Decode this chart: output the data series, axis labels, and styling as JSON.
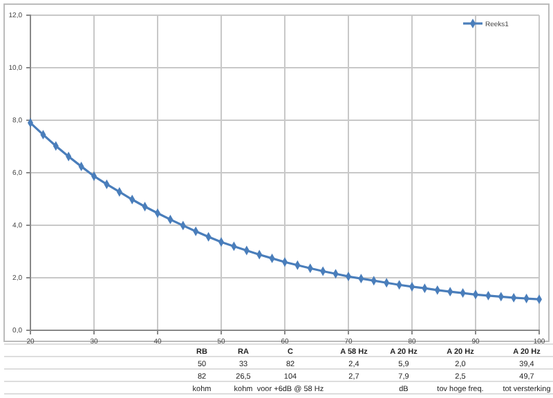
{
  "chart_data": {
    "type": "line",
    "x": [
      20,
      22,
      24,
      26,
      28,
      30,
      32,
      34,
      36,
      38,
      40,
      42,
      44,
      46,
      48,
      50,
      52,
      54,
      56,
      58,
      60,
      62,
      64,
      66,
      68,
      70,
      72,
      74,
      76,
      78,
      80,
      82,
      84,
      86,
      88,
      90,
      92,
      94,
      96,
      98,
      100
    ],
    "series": [
      {
        "name": "Reeks1",
        "color": "#4a7ebb",
        "values": [
          7.9,
          7.45,
          7.02,
          6.62,
          6.24,
          5.87,
          5.56,
          5.27,
          4.98,
          4.71,
          4.46,
          4.22,
          3.99,
          3.77,
          3.56,
          3.36,
          3.2,
          3.04,
          2.88,
          2.74,
          2.6,
          2.48,
          2.36,
          2.25,
          2.15,
          2.05,
          1.97,
          1.89,
          1.81,
          1.73,
          1.66,
          1.6,
          1.53,
          1.47,
          1.42,
          1.36,
          1.32,
          1.28,
          1.24,
          1.21,
          1.18
        ]
      }
    ],
    "xlim": [
      20,
      100
    ],
    "xticks": [
      20,
      30,
      40,
      50,
      60,
      70,
      80,
      90,
      100
    ],
    "ylim": [
      0,
      12
    ],
    "yticks": [
      {
        "value": 0,
        "label": "0,0"
      },
      {
        "value": 2,
        "label": "2,0"
      },
      {
        "value": 4,
        "label": "4,0"
      },
      {
        "value": 6,
        "label": "6,0"
      },
      {
        "value": 8,
        "label": "8,0"
      },
      {
        "value": 10,
        "label": "10,0"
      },
      {
        "value": 12,
        "label": "12,0"
      }
    ],
    "grid": true,
    "legend": "top right",
    "marker": "diamond",
    "line_style": "solid",
    "annotations": [
      "RB\tRA\tC\tA 58 Hz\tA 20 Hz\tA 20 Hz\tA 20 Hz",
      "50\t33\t82\t2,4\t5,9\t2,0\t39,4",
      "82\t26,5\t104\t2,7\t7,9\t2,5\t49,7",
      "kohm\tkohm\tvoor +6dB @ 58 Hz\t\tdB\ttov hoge freq.\ttot versterking"
    ]
  }
}
